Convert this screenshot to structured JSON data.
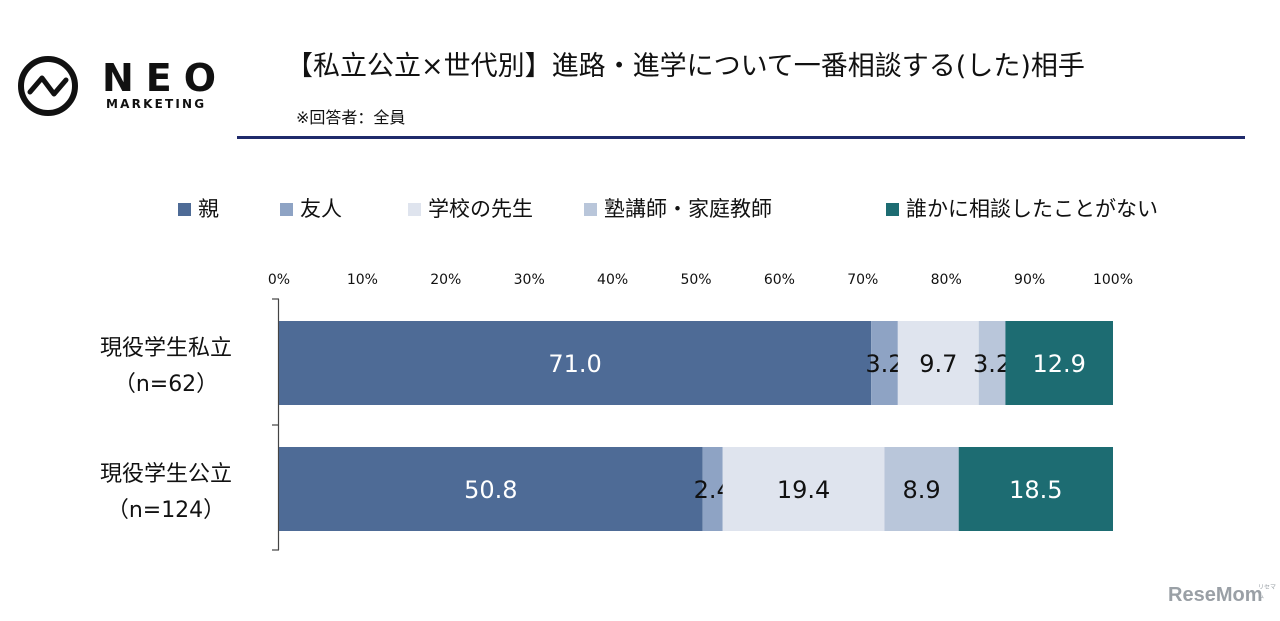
{
  "logo": {
    "word": "NEO",
    "sub": "MARKETING"
  },
  "title": "【私立公立×世代別】進路・進学について一番相談する(した)相手",
  "subtitle": "※回答者：全員",
  "watermark": "ReseMom",
  "watermark_small": "リセマム",
  "colors": {
    "rule": "#1f2a6b",
    "axis": "#444444",
    "white_label": "#ffffff",
    "dark_label": "#111111"
  },
  "chart_data": {
    "type": "bar",
    "orientation": "horizontal",
    "stacked": true,
    "percent": true,
    "xlim": [
      0,
      100
    ],
    "ticks": [
      "0%",
      "10%",
      "20%",
      "30%",
      "40%",
      "50%",
      "60%",
      "70%",
      "80%",
      "90%",
      "100%"
    ],
    "legend_position": "top",
    "categories": [
      [
        "現役学生私立",
        "（n=62）"
      ],
      [
        "現役学生公立",
        "（n=124）"
      ]
    ],
    "series": [
      {
        "name": "親",
        "color": "#4e6b96",
        "label_color": "#ffffff",
        "values": [
          71.0,
          50.8
        ],
        "labels": [
          "71.0",
          "50.8"
        ]
      },
      {
        "name": "友人",
        "color": "#8ea3c4",
        "label_color": "#111111",
        "values": [
          3.2,
          2.4
        ],
        "labels": [
          "3.2",
          "2.4"
        ]
      },
      {
        "name": "学校の先生",
        "color": "#dfe4ee",
        "label_color": "#111111",
        "values": [
          9.7,
          19.4
        ],
        "labels": [
          "9.7",
          "19.4"
        ]
      },
      {
        "name": "塾講師・家庭教師",
        "color": "#b9c6da",
        "label_color": "#111111",
        "values": [
          3.2,
          8.9
        ],
        "labels": [
          "3.2",
          "8.9"
        ]
      },
      {
        "name": "誰かに相談したことがない",
        "color": "#1d6c72",
        "label_color": "#ffffff",
        "values": [
          12.9,
          18.5
        ],
        "labels": [
          "12.9",
          "18.5"
        ]
      }
    ]
  }
}
